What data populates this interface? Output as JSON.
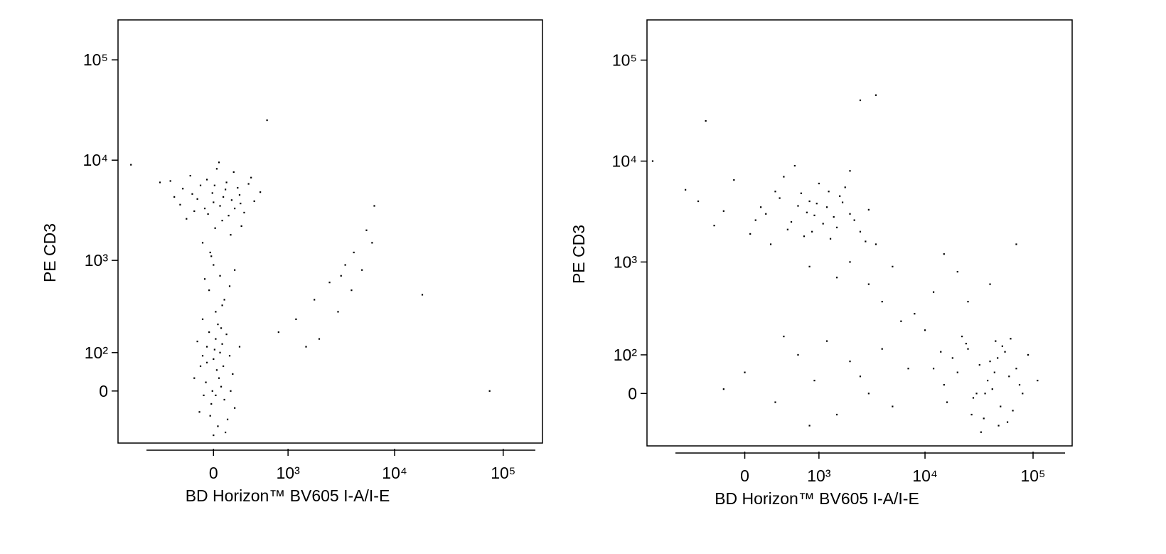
{
  "chart_data": [
    {
      "type": "scatter",
      "x_label": "BD Horizon™ BV605 I-A/I-E",
      "y_label": "PE CD3",
      "color": "#000000",
      "xscale": "biexponential",
      "yscale": "biexponential",
      "xlim": [
        -1600,
        230000
      ],
      "ylim": [
        -150,
        250000
      ],
      "xticks": [
        0,
        {
          "value": 1000,
          "label": "10³"
        },
        {
          "value": 10000,
          "label": "10⁴"
        },
        {
          "value": 100000,
          "label": "10⁵"
        }
      ],
      "yticks": [
        0,
        {
          "value": 100,
          "label": "10²"
        },
        {
          "value": 1000,
          "label": "10³"
        },
        {
          "value": 10000,
          "label": "10⁴"
        },
        {
          "value": 100000,
          "label": "10⁵"
        }
      ],
      "x": [
        -300,
        -150,
        0,
        120,
        250,
        -50,
        80,
        200,
        -220,
        350,
        -400,
        30,
        160,
        -100,
        270,
        -10,
        60,
        -180,
        420,
        110,
        -260,
        190,
        -60,
        300,
        15,
        -120,
        90,
        230,
        -330,
        140,
        -30,
        50,
        380,
        -450,
        500,
        -80,
        170,
        10,
        -200,
        260,
        0,
        60,
        -40,
        100,
        20,
        -80,
        150,
        40,
        -20,
        200,
        80,
        -100,
        0,
        50,
        -60,
        100,
        -120,
        20,
        150,
        -30,
        70,
        -90,
        180,
        10,
        -150,
        120,
        -10,
        40,
        90,
        -70,
        200,
        0,
        60,
        -40,
        130,
        -100,
        30,
        80,
        -20,
        160,
        -180,
        110,
        -60,
        20,
        250,
        -130,
        70,
        1200,
        1800,
        2500,
        3000,
        3500,
        4200,
        5000,
        5500,
        6200,
        2000,
        4000,
        6500,
        1500,
        3200,
        800,
        18000,
        75000,
        -600,
        -1200,
        600
      ],
      "values": [
        5200,
        4100,
        3800,
        6000,
        4500,
        2900,
        2500,
        3300,
        7000,
        5800,
        4300,
        8200,
        1800,
        1500,
        2200,
        4700,
        3500,
        3100,
        3900,
        5100,
        2600,
        7600,
        6400,
        3000,
        2100,
        5600,
        4300,
        5300,
        3600,
        2800,
        1200,
        9500,
        6700,
        6200,
        4800,
        3300,
        4000,
        5600,
        4600,
        3700,
        900,
        700,
        500,
        400,
        300,
        650,
        550,
        220,
        1100,
        800,
        350,
        250,
        80,
        30,
        120,
        -20,
        60,
        150,
        90,
        -60,
        10,
        -10,
        40,
        110,
        140,
        170,
        0,
        -90,
        60,
        20,
        -40,
        -120,
        100,
        180,
        -70,
        90,
        50,
        130,
        -30,
        0,
        30,
        -110,
        70,
        -10,
        120,
        -50,
        200,
        250,
        400,
        600,
        300,
        900,
        1200,
        800,
        2000,
        1500,
        150,
        500,
        3500,
        120,
        700,
        180,
        450,
        0,
        6000,
        9000,
        25000
      ]
    },
    {
      "type": "scatter",
      "x_label": "BD Horizon™ BV605 I-A/I-E",
      "y_label": "PE CD3",
      "color": "#000000",
      "xscale": "biexponential",
      "yscale": "biexponential",
      "xlim": [
        -1700,
        230000
      ],
      "ylim": [
        -150,
        250000
      ],
      "xticks": [
        0,
        {
          "value": 1000,
          "label": "10³"
        },
        {
          "value": 10000,
          "label": "10⁴"
        },
        {
          "value": 100000,
          "label": "10⁵"
        }
      ],
      "yticks": [
        0,
        {
          "value": 100,
          "label": "10²"
        },
        {
          "value": 1000,
          "label": "10³"
        },
        {
          "value": 10000,
          "label": "10⁴"
        },
        {
          "value": 100000,
          "label": "10⁵"
        }
      ],
      "x": [
        200,
        500,
        800,
        1200,
        1500,
        300,
        700,
        1000,
        2000,
        100,
        -200,
        400,
        900,
        1600,
        2500,
        -500,
        600,
        1100,
        1800,
        50,
        350,
        750,
        1300,
        2200,
        -100,
        450,
        950,
        1400,
        3000,
        -700,
        250,
        650,
        1700,
        2800,
        150,
        850,
        1250,
        -300,
        550,
        2000,
        2000,
        3000,
        4000,
        5000,
        6000,
        1500,
        8000,
        12000,
        20000,
        3500,
        10000,
        800,
        25000,
        40000,
        15000,
        20000,
        30000,
        40000,
        50000,
        25000,
        60000,
        35000,
        45000,
        15000,
        70000,
        28000,
        55000,
        18000,
        80000,
        38000,
        48000,
        22000,
        65000,
        32000,
        42000,
        12000,
        90000,
        27000,
        52000,
        33000,
        75000,
        16000,
        44000,
        58000,
        24000,
        36000,
        47000,
        110000,
        14000,
        62000,
        0,
        300,
        600,
        900,
        1500,
        2000,
        3000,
        4000,
        5000,
        7000,
        -200,
        800,
        1200,
        2500,
        400,
        3500,
        2500,
        -1500,
        70000,
        -400
      ],
      "values": [
        3000,
        2500,
        4000,
        3500,
        2200,
        5000,
        1800,
        6000,
        3000,
        2600,
        3200,
        7000,
        2900,
        4500,
        2000,
        4000,
        3600,
        2400,
        5500,
        1900,
        4300,
        3100,
        1700,
        2600,
        6500,
        2100,
        3800,
        2800,
        3300,
        5200,
        1500,
        4800,
        3900,
        1600,
        3500,
        2000,
        5000,
        2300,
        9000,
        8000,
        1000,
        600,
        400,
        900,
        250,
        700,
        300,
        500,
        800,
        1500,
        200,
        900,
        400,
        600,
        1200,
        50,
        0,
        80,
        -30,
        120,
        40,
        -60,
        150,
        20,
        60,
        -10,
        110,
        90,
        0,
        30,
        -80,
        170,
        -40,
        70,
        10,
        60,
        100,
        -50,
        130,
        -100,
        20,
        -20,
        50,
        -70,
        140,
        0,
        90,
        30,
        110,
        160,
        50,
        -20,
        100,
        30,
        -50,
        80,
        0,
        120,
        -30,
        60,
        10,
        -80,
        150,
        40,
        170,
        45000,
        40000,
        10000,
        1500,
        25000
      ]
    }
  ]
}
